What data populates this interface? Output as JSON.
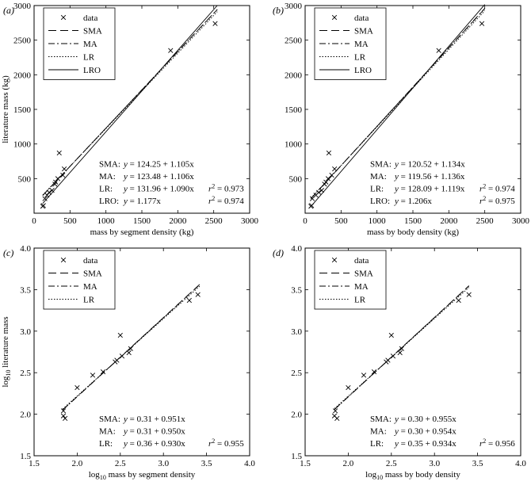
{
  "chart_data": [
    {
      "type": "scatter",
      "panel_label": "(a)",
      "xlabel": "mass by segment density (kg)",
      "ylabel": "literature mass (kg)",
      "xlim": [
        0,
        3000
      ],
      "ylim": [
        0,
        3000
      ],
      "xticks": [
        0,
        500,
        1000,
        1500,
        2000,
        2500,
        3000
      ],
      "yticks": [
        500,
        1000,
        1500,
        2000,
        2500,
        3000
      ],
      "tick_labels_x": [
        "0",
        "500",
        "1000",
        "1500",
        "2000",
        "2500",
        "3000"
      ],
      "tick_labels_y": [
        "500",
        "1000",
        "1500",
        "2000",
        "2500",
        "3000"
      ],
      "legend": [
        "data",
        "SMA",
        "MA",
        "LR",
        "LRO"
      ],
      "legend_placement": "top-left",
      "points": [
        [
          120,
          100
        ],
        [
          130,
          110
        ],
        [
          150,
          210
        ],
        [
          180,
          260
        ],
        [
          210,
          300
        ],
        [
          250,
          330
        ],
        [
          290,
          420
        ],
        [
          300,
          450
        ],
        [
          330,
          500
        ],
        [
          350,
          870
        ],
        [
          400,
          550
        ],
        [
          420,
          640
        ],
        [
          1900,
          2350
        ],
        [
          2520,
          2740
        ]
      ],
      "fits": [
        {
          "name": "SMA",
          "a": 124.25,
          "b": 1.105,
          "dash": "10,5"
        },
        {
          "name": "MA",
          "a": 123.48,
          "b": 1.106,
          "dash": "8,3,2,3"
        },
        {
          "name": "LR",
          "a": 131.96,
          "b": 1.09,
          "dash": "1.5,2"
        },
        {
          "name": "LRO",
          "a": 0,
          "b": 1.177,
          "dash": ""
        }
      ],
      "fit_x_range": [
        120,
        2550
      ],
      "equations": [
        {
          "label": "SMA:",
          "eq": "y = 124.25 + 1.105x",
          "r2": ""
        },
        {
          "label": "MA:",
          "eq": "y = 123.48 + 1.106x",
          "r2": ""
        },
        {
          "label": "LR:",
          "eq": "y = 131.96 + 1.090x",
          "r2": "= 0.973"
        },
        {
          "label": "LRO:",
          "eq": "y = 1.177x",
          "r2": "= 0.974"
        }
      ]
    },
    {
      "type": "scatter",
      "panel_label": "(b)",
      "xlabel": "mass by body density (kg)",
      "ylabel": "",
      "xlim": [
        0,
        3000
      ],
      "ylim": [
        0,
        3000
      ],
      "xticks": [
        0,
        500,
        1000,
        1500,
        2000,
        2500,
        3000
      ],
      "yticks": [
        500,
        1000,
        1500,
        2000,
        2500,
        3000
      ],
      "tick_labels_x": [
        "0",
        "500",
        "1000",
        "1500",
        "2000",
        "2500",
        "3000"
      ],
      "tick_labels_y": [
        "500",
        "1000",
        "1500",
        "2000",
        "2500",
        "3000"
      ],
      "legend": [
        "data",
        "SMA",
        "MA",
        "LR",
        "LRO"
      ],
      "legend_placement": "top-left",
      "points": [
        [
          80,
          100
        ],
        [
          90,
          110
        ],
        [
          100,
          210
        ],
        [
          150,
          260
        ],
        [
          190,
          300
        ],
        [
          230,
          330
        ],
        [
          270,
          420
        ],
        [
          290,
          450
        ],
        [
          320,
          500
        ],
        [
          330,
          870
        ],
        [
          370,
          550
        ],
        [
          410,
          640
        ],
        [
          1860,
          2350
        ],
        [
          2460,
          2740
        ]
      ],
      "fits": [
        {
          "name": "SMA",
          "a": 120.52,
          "b": 1.134,
          "dash": "10,5"
        },
        {
          "name": "MA",
          "a": 119.56,
          "b": 1.136,
          "dash": "8,3,2,3"
        },
        {
          "name": "LR",
          "a": 128.09,
          "b": 1.119,
          "dash": "1.5,2"
        },
        {
          "name": "LRO",
          "a": 0,
          "b": 1.206,
          "dash": ""
        }
      ],
      "fit_x_range": [
        80,
        2500
      ],
      "equations": [
        {
          "label": "SMA:",
          "eq": "y = 120.52 + 1.134x",
          "r2": ""
        },
        {
          "label": "MA:",
          "eq": "y = 119.56 + 1.136x",
          "r2": ""
        },
        {
          "label": "LR:",
          "eq": "y = 128.09 + 1.119x",
          "r2": "= 0.974"
        },
        {
          "label": "LRO:",
          "eq": "y = 1.206x",
          "r2": "= 0.975"
        }
      ]
    },
    {
      "type": "scatter",
      "panel_label": "(c)",
      "xlabel": "log10 mass by segment density",
      "ylabel": "log10 literature mass",
      "xlim": [
        1.5,
        4.0
      ],
      "ylim": [
        1.5,
        4.0
      ],
      "xticks": [
        1.5,
        2.0,
        2.5,
        3.0,
        3.5,
        4.0
      ],
      "yticks": [
        1.5,
        2.0,
        2.5,
        3.0,
        3.5,
        4.0
      ],
      "tick_labels_x": [
        "1.5",
        "2.0",
        "2.5",
        "3.0",
        "3.5",
        "4.0"
      ],
      "tick_labels_y": [
        "1.5",
        "2.0",
        "2.5",
        "3.0",
        "3.5",
        "4.0"
      ],
      "legend": [
        "data",
        "SMA",
        "MA",
        "LR"
      ],
      "legend_placement": "top-left",
      "points": [
        [
          1.84,
          1.98
        ],
        [
          1.84,
          2.04
        ],
        [
          1.86,
          1.95
        ],
        [
          2.0,
          2.32
        ],
        [
          2.18,
          2.47
        ],
        [
          2.3,
          2.51
        ],
        [
          2.44,
          2.63
        ],
        [
          2.46,
          2.65
        ],
        [
          2.5,
          2.95
        ],
        [
          2.52,
          2.7
        ],
        [
          2.6,
          2.74
        ],
        [
          2.62,
          2.79
        ],
        [
          3.3,
          3.37
        ],
        [
          3.4,
          3.44
        ]
      ],
      "fits": [
        {
          "name": "SMA",
          "a": 0.31,
          "b": 0.951,
          "dash": "10,5"
        },
        {
          "name": "MA",
          "a": 0.31,
          "b": 0.95,
          "dash": "8,3,2,3"
        },
        {
          "name": "LR",
          "a": 0.36,
          "b": 0.93,
          "dash": "1.5,2"
        }
      ],
      "fit_x_range": [
        1.83,
        3.42
      ],
      "equations": [
        {
          "label": "SMA:",
          "eq": "y = 0.31 + 0.951x",
          "r2": ""
        },
        {
          "label": "MA:",
          "eq": "y = 0.31 + 0.950x",
          "r2": ""
        },
        {
          "label": "LR:",
          "eq": "y = 0.36 + 0.930x",
          "r2": "= 0.955"
        }
      ]
    },
    {
      "type": "scatter",
      "panel_label": "(d)",
      "xlabel": "log10 mass by body density",
      "ylabel": "",
      "xlim": [
        1.5,
        4.0
      ],
      "ylim": [
        1.5,
        4.0
      ],
      "xticks": [
        1.5,
        2.0,
        2.5,
        3.0,
        3.5,
        4.0
      ],
      "yticks": [
        1.5,
        2.0,
        2.5,
        3.0,
        3.5,
        4.0
      ],
      "tick_labels_x": [
        "1.5",
        "2.0",
        "2.5",
        "3.0",
        "3.5",
        "4.0"
      ],
      "tick_labels_y": [
        "1.5",
        "2.0",
        "2.5",
        "3.0",
        "3.5",
        "4.0"
      ],
      "legend": [
        "data",
        "SMA",
        "MA",
        "LR"
      ],
      "legend_placement": "top-left",
      "points": [
        [
          1.84,
          1.98
        ],
        [
          1.85,
          2.04
        ],
        [
          1.87,
          1.95
        ],
        [
          2.0,
          2.32
        ],
        [
          2.18,
          2.47
        ],
        [
          2.3,
          2.51
        ],
        [
          2.44,
          2.63
        ],
        [
          2.46,
          2.65
        ],
        [
          2.5,
          2.95
        ],
        [
          2.52,
          2.7
        ],
        [
          2.6,
          2.74
        ],
        [
          2.62,
          2.79
        ],
        [
          3.28,
          3.37
        ],
        [
          3.4,
          3.44
        ]
      ],
      "fits": [
        {
          "name": "SMA",
          "a": 0.3,
          "b": 0.955,
          "dash": "10,5"
        },
        {
          "name": "MA",
          "a": 0.3,
          "b": 0.954,
          "dash": "8,3,2,3"
        },
        {
          "name": "LR",
          "a": 0.35,
          "b": 0.934,
          "dash": "1.5,2"
        }
      ],
      "fit_x_range": [
        1.84,
        3.4
      ],
      "equations": [
        {
          "label": "SMA:",
          "eq": "y = 0.30 + 0.955x",
          "r2": ""
        },
        {
          "label": "MA:",
          "eq": "y = 0.30 + 0.954x",
          "r2": ""
        },
        {
          "label": "LR:",
          "eq": "y = 0.35 + 0.934x",
          "r2": "= 0.956"
        }
      ]
    }
  ]
}
